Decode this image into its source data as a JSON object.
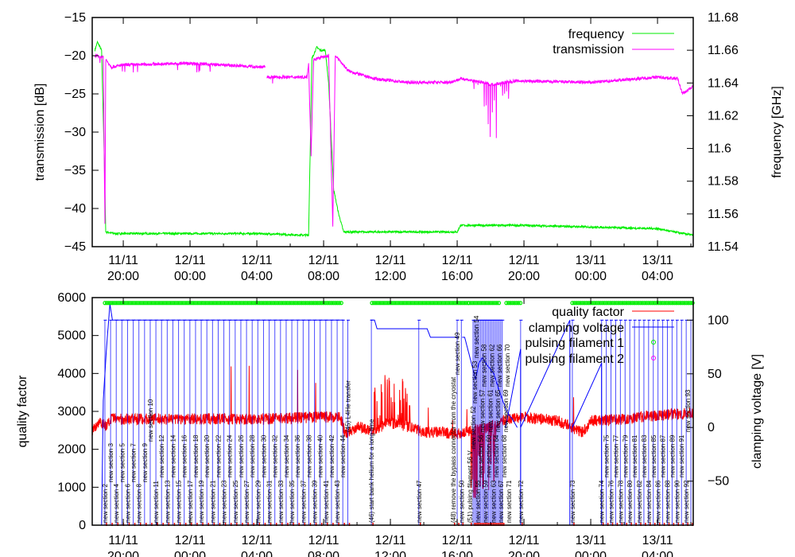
{
  "chart_data": [
    {
      "type": "line",
      "panel": "top",
      "time_unit": "hours since 11/11 00:00",
      "xlim": [
        18.14,
        54.14
      ],
      "x_ticks": [
        {
          "t": 20,
          "label": [
            "11/11",
            "20:00"
          ]
        },
        {
          "t": 24,
          "label": [
            "12/11",
            "00:00"
          ]
        },
        {
          "t": 28,
          "label": [
            "12/11",
            "04:00"
          ]
        },
        {
          "t": 32,
          "label": [
            "12/11",
            "08:00"
          ]
        },
        {
          "t": 36,
          "label": [
            "12/11",
            "12:00"
          ]
        },
        {
          "t": 40,
          "label": [
            "12/11",
            "16:00"
          ]
        },
        {
          "t": 44,
          "label": [
            "12/11",
            "20:00"
          ]
        },
        {
          "t": 48,
          "label": [
            "13/11",
            "00:00"
          ]
        },
        {
          "t": 52,
          "label": [
            "13/11",
            "04:00"
          ]
        }
      ],
      "ylabel": "transmission [dB]",
      "ylim": [
        -45,
        -15
      ],
      "y_ticks": [
        "-45",
        "-40",
        "-35",
        "-30",
        "-25",
        "-20",
        "-15"
      ],
      "y2label": "frequency [GHz]",
      "y2lim": [
        11.54,
        11.68
      ],
      "y2_ticks": [
        "11.54",
        "11.56",
        "11.58",
        "11.6",
        "11.62",
        "11.64",
        "11.66",
        "11.68"
      ],
      "legend_position": "top-right",
      "series": [
        {
          "name": "frequency",
          "axis": "y2",
          "color": "#00ee00",
          "points": [
            [
              18.3,
              11.66
            ],
            [
              18.45,
              11.665
            ],
            [
              18.7,
              11.66
            ],
            [
              18.85,
              11.6
            ],
            [
              18.95,
              11.549
            ],
            [
              19.5,
              11.548
            ],
            [
              24,
              11.548
            ],
            [
              28,
              11.548
            ],
            [
              31,
              11.547
            ],
            [
              31.1,
              11.547
            ],
            [
              31.3,
              11.655
            ],
            [
              31.6,
              11.662
            ],
            [
              31.8,
              11.66
            ],
            [
              32.1,
              11.66
            ],
            [
              32.3,
              11.64
            ],
            [
              32.6,
              11.575
            ],
            [
              32.9,
              11.56
            ],
            [
              33.2,
              11.549
            ],
            [
              35,
              11.549
            ],
            [
              40,
              11.549
            ],
            [
              40.2,
              11.553
            ],
            [
              44,
              11.553
            ],
            [
              48,
              11.552
            ],
            [
              52,
              11.551
            ],
            [
              53,
              11.549
            ],
            [
              54.14,
              11.547
            ]
          ],
          "noise": 0.0006
        },
        {
          "name": "transmission",
          "axis": "y",
          "color": "#ff00ff",
          "points": [
            [
              18.3,
              -20
            ],
            [
              18.8,
              -20.2
            ],
            [
              18.9,
              -42
            ],
            [
              18.95,
              -20.5
            ],
            [
              19.3,
              -21.5
            ],
            [
              20,
              -21.2
            ],
            [
              24,
              -21
            ],
            [
              28.5,
              -21.5
            ],
            null,
            [
              28.6,
              -22.8
            ],
            [
              31,
              -22.8
            ],
            [
              31.1,
              -21
            ],
            [
              31.25,
              -33
            ],
            [
              31.4,
              -20.5
            ],
            [
              32.3,
              -20
            ],
            [
              32.55,
              -42.5
            ],
            [
              32.7,
              -20
            ],
            [
              33.5,
              -22
            ],
            [
              35,
              -23
            ],
            [
              37,
              -23.5
            ],
            [
              39.5,
              -23.5
            ],
            [
              40.3,
              -23
            ],
            [
              41.5,
              -23.5
            ],
            [
              42,
              -23.8
            ],
            [
              43.5,
              -23.3
            ],
            [
              48,
              -23.5
            ],
            [
              52,
              -22.8
            ],
            [
              53.2,
              -23
            ],
            [
              53.5,
              -25
            ],
            [
              54.14,
              -24
            ]
          ],
          "noise": 0.2,
          "dips": {
            "from": 41.0,
            "to": 43.2,
            "count": 18,
            "min": -34
          }
        }
      ]
    },
    {
      "type": "line",
      "panel": "bottom",
      "ylabel": "quality factor",
      "ylim": [
        0,
        6000
      ],
      "y_ticks": [
        "0",
        "1000",
        "2000",
        "3000",
        "4000",
        "5000",
        "6000"
      ],
      "y2label": "clamping voltage [V]",
      "y2lim": [
        -91,
        121
      ],
      "y2_ticks": [
        "-50",
        "0",
        "50",
        "100"
      ],
      "legend_position": "top-right",
      "series": [
        {
          "name": "quality factor",
          "color": "#ff0000",
          "points": [
            [
              18.14,
              2500
            ],
            [
              18.6,
              2750
            ],
            [
              19,
              2600
            ],
            [
              19.3,
              2800
            ],
            [
              24,
              2800
            ],
            [
              28,
              2800
            ],
            [
              32,
              2850
            ],
            [
              33,
              2850
            ],
            [
              33.3,
              2400
            ],
            [
              34,
              2600
            ],
            [
              35,
              2500
            ],
            [
              36,
              2700
            ],
            [
              37,
              2600
            ],
            [
              38,
              2450
            ],
            [
              39,
              2450
            ],
            [
              40,
              2400
            ],
            [
              41,
              2500
            ],
            [
              42,
              2600
            ],
            [
              43,
              2800
            ],
            [
              44,
              2850
            ],
            [
              46,
              2750
            ],
            [
              47.5,
              2450
            ],
            [
              48,
              2750
            ],
            [
              50,
              2800
            ],
            [
              52,
              2900
            ],
            [
              54.14,
              2950
            ]
          ],
          "noise": 150,
          "bursts": [
            [
              35,
              37.2,
              4000
            ],
            [
              40.8,
              42.4,
              -1800
            ]
          ]
        },
        {
          "name": "clamping voltage",
          "color": "#0000ff",
          "points": [
            [
              18.14,
              null
            ],
            [
              18.7,
              -91
            ],
            [
              18.8,
              25
            ],
            [
              19,
              75
            ],
            [
              19.2,
              115
            ],
            [
              19.35,
              100
            ],
            [
              33.2,
              100
            ],
            null,
            [
              34.8,
              100
            ],
            [
              35.05,
              100
            ],
            [
              35.2,
              92
            ],
            [
              38.2,
              92
            ],
            [
              38.4,
              84
            ],
            [
              40.1,
              84
            ],
            null,
            [
              40.3,
              84
            ],
            [
              40.45,
              84
            ],
            [
              41.1,
              45
            ],
            [
              41.3,
              60
            ],
            [
              41.5,
              65
            ],
            [
              41.8,
              58
            ],
            [
              42.2,
              50
            ],
            [
              42.5,
              35
            ],
            [
              42.8,
              22
            ],
            [
              43,
              14
            ],
            [
              43.3,
              8
            ],
            [
              43.6,
              0
            ]
          ],
          "diagonal_ramps": [
            [
              42.9,
              0,
              43.8,
              73
            ],
            [
              43.8,
              0,
              46.75,
              100
            ],
            [
              46.9,
              0,
              48.65,
              60
            ]
          ]
        },
        {
          "name": "pulsing filament 1",
          "color": "#00ee00",
          "marker": "circle",
          "value": 116,
          "ranges": [
            [
              18.9,
              33.15
            ],
            [
              34.9,
              40.7
            ],
            [
              40.7,
              42.55
            ],
            [
              42.95,
              43.9
            ],
            [
              46.9,
              54.14
            ]
          ]
        },
        {
          "name": "pulsing filament 2",
          "color": "#ff00ff",
          "marker": "circle",
          "value": -91
        }
      ],
      "annotations": {
        "block_a": {
          "from": 18.9,
          "to": 33.15,
          "labels": [
            "new section 2",
            "new section 3",
            "new section 4",
            "new section 5",
            "new section 6",
            "new section 7",
            "new section 8",
            "new section 9",
            "new section 10",
            "new section 11",
            "new section 12",
            "new section 13",
            "new section 14",
            "new section 15",
            "new section 16",
            "new section 17",
            "new section 18",
            "new section 19",
            "new section 20",
            "new section 21",
            "new section 22",
            "new section 23",
            "new section 24",
            "new section 25",
            "new section 26",
            "new section 27",
            "new section 28",
            "new section 29",
            "new section 30",
            "new section 31",
            "new section 32",
            "new section 33",
            "new section 34",
            "new section 35",
            "new section 36",
            "new section 37",
            "new section 38",
            "new section 39",
            "new section 40",
            "new section 41",
            "new section 42",
            "new section 43",
            "new section 44"
          ]
        },
        "singles": [
          {
            "t": 33.45,
            "text": "(45) L4He transfer"
          },
          {
            "t": 34.86,
            "text": "(46) start bank helium for a long time"
          },
          {
            "t": 37.7,
            "text": "new section 47"
          },
          {
            "t": 39.75,
            "text": "(48) remove the bypass connector from the cryostat"
          },
          {
            "t": 40.0,
            "text": "new section 49"
          },
          {
            "t": 40.25,
            "text": "new section 50"
          },
          {
            "t": 40.75,
            "text": "(51) pulsing filament 56 V"
          },
          {
            "t": 43.8,
            "text": "new section 72"
          },
          {
            "t": 46.9,
            "text": "new section 73"
          }
        ],
        "block_b": {
          "from": 40.95,
          "to": 42.7,
          "labels": [
            "new section 52",
            "new section 53",
            "new section 54",
            "new section 55",
            "new section 56",
            "new section 57",
            "new section 58",
            "new section 59",
            "new section 60",
            "new section 61",
            "new section 62",
            "new section 63",
            "new section 64",
            "new section 65",
            "new section 66",
            "new section 67",
            "new section 68",
            "new section 69",
            "new section 70",
            "new section 71"
          ]
        },
        "block_c": {
          "from": 48.65,
          "to": 54.0,
          "labels": [
            "new section 74",
            "new section 75",
            "new section 76",
            "new section 77",
            "new section 78",
            "new section 79",
            "new section 80",
            "new section 81",
            "new section 82",
            "new section 83",
            "new section 84",
            "new section 85",
            "new section 86",
            "new section 87",
            "new section 88",
            "new section 89",
            "new section 90",
            "new section 91",
            "new section 92",
            "new section 93"
          ]
        }
      }
    }
  ]
}
